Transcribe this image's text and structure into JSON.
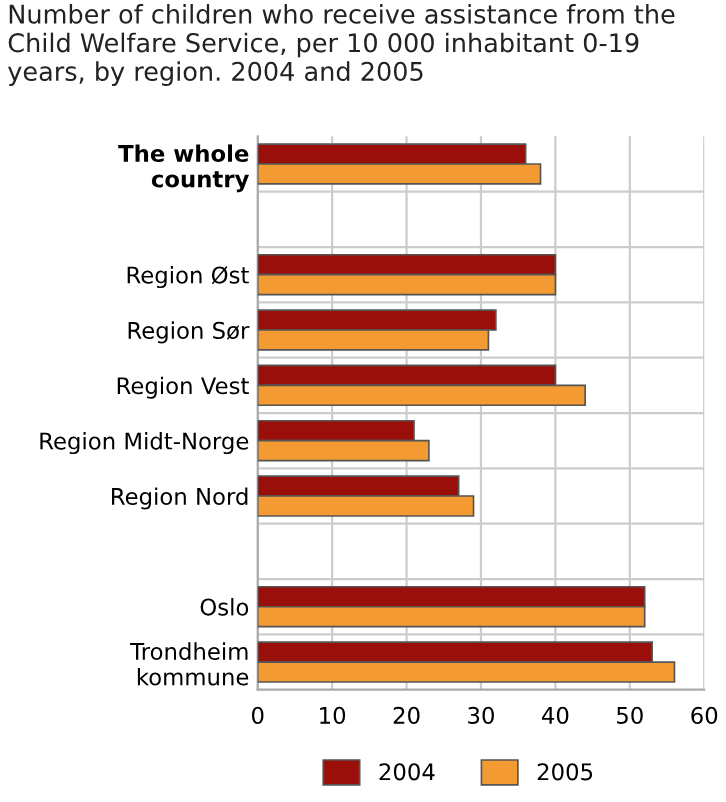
{
  "chart_data": {
    "type": "bar",
    "orientation": "horizontal",
    "title": "Number of children who receive assistance from the Child Welfare Service, per 10 000 inhabitant 0-19 years, by region. 2004 and 2005",
    "categories": [
      "The whole\ncountry",
      null,
      "Region Øst",
      "Region Sør",
      "Region Vest",
      "Region Midt-Norge",
      "Region Nord",
      null,
      "Oslo",
      "Trondheim\nkommune"
    ],
    "series": [
      {
        "name": "2004",
        "color": "#9a0f0a",
        "values": [
          36,
          null,
          40,
          32,
          40,
          21,
          27,
          null,
          52,
          53
        ]
      },
      {
        "name": "2005",
        "color": "#f39a33",
        "values": [
          38,
          null,
          40,
          31,
          44,
          23,
          29,
          null,
          52,
          56
        ]
      }
    ],
    "xlim": [
      0,
      60
    ],
    "xticks": [
      0,
      10,
      20,
      30,
      40,
      50,
      60
    ],
    "grid": true,
    "legend": "bottom"
  }
}
